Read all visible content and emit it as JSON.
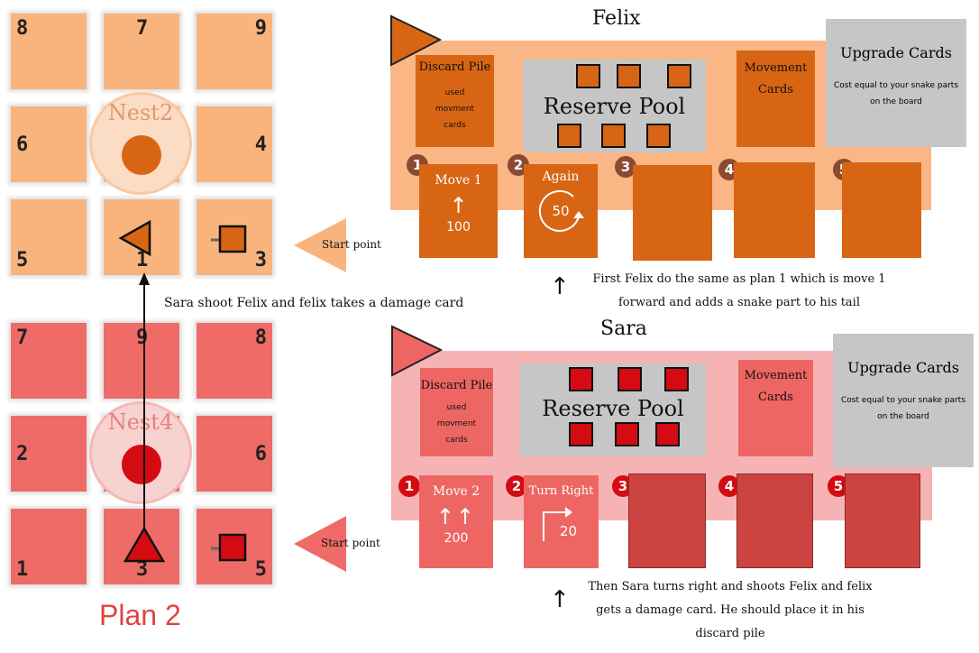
{
  "colors": {
    "felix_tile": "#f9b47e",
    "felix_board": "#fbb685",
    "felix_card": "#d86513",
    "felix_dot": "#d86513",
    "sara_tile": "#ef6b67",
    "sara_board": "#f5b4b3",
    "sara_card": "#ee6663",
    "sara_dark_card": "#cd4342",
    "sara_red": "#d40b12",
    "felix_num": "#8a4a32"
  },
  "felix_grid": {
    "tiles": [
      "8",
      "7",
      "9",
      "6",
      "4",
      "5",
      "1",
      "3"
    ],
    "nest": "Nest2"
  },
  "sara_grid": {
    "tiles": [
      "7",
      "9",
      "8",
      "2",
      "6",
      "1",
      "3",
      "5"
    ],
    "nest": "Nest4"
  },
  "plan_label": "Plan 2",
  "start_point_felix": "Start point",
  "start_point_sara": "Start point",
  "shoot_note": "Sara shoot  Felix and felix takes a damage card",
  "felix": {
    "name": "Felix",
    "discard_title": "Discard Pile",
    "discard_sub": "used movment cards",
    "pool_title": "Reserve Pool",
    "movement_title": "Movement Cards",
    "upgrade_title": "Upgrade Cards",
    "upgrade_sub": "Cost equal to your snake parts on the board",
    "slots": [
      "1",
      "2",
      "3",
      "4",
      "5"
    ],
    "card1": {
      "label": "Move 1",
      "icon": "↑",
      "priority": "100"
    },
    "card2": {
      "label": "Again",
      "priority": "50"
    },
    "note": "First Felix do the same as plan 1 which is move 1 forward and adds a snake part to his tail"
  },
  "sara": {
    "name": "Sara",
    "discard_title": "Discard Pile",
    "discard_sub": "used movment cards",
    "pool_title": "Reserve Pool",
    "movement_title": "Movement Cards",
    "upgrade_title": "Upgrade Cards",
    "upgrade_sub": "Cost equal to your snake parts on the board",
    "slots": [
      "1",
      "2",
      "3",
      "4",
      "5"
    ],
    "card1": {
      "label": "Move 2",
      "icon": "↑↑",
      "priority": "200"
    },
    "card2": {
      "label": "Turn Right",
      "icon": "↱",
      "priority": "20"
    },
    "note": "Then Sara turns right and shoots Felix and felix gets a damage card. He should place it in his discard pile"
  }
}
